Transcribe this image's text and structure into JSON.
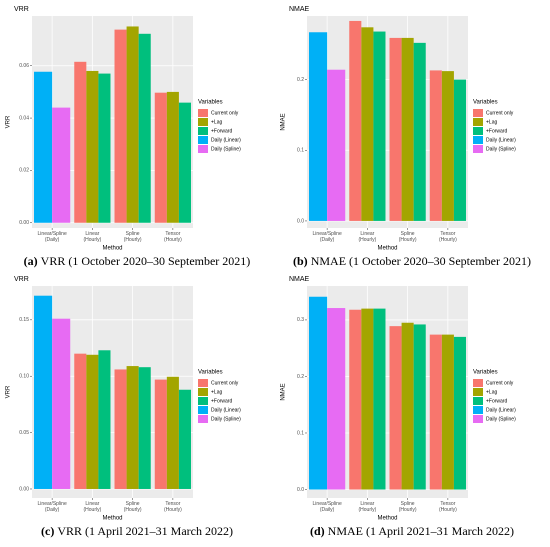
{
  "chart_data": [
    {
      "type": "bar",
      "title": "VRR",
      "y_label": "VRR",
      "x_label": "Method",
      "legend_title": "Variables",
      "caption_label": "(a)",
      "caption": "VRR (1 October 2020–30 September 2021)",
      "categories": [
        "Linear/Spline\n(Daily)",
        "Linear\n(Hourly)",
        "Spline\n(Hourly)",
        "Tensor\n(Hourly)"
      ],
      "series": [
        {
          "name": "Current only",
          "color": "#F8766D",
          "values": [
            null,
            0.0615,
            0.0738,
            0.0497
          ]
        },
        {
          "name": "+Lag",
          "color": "#A3A500",
          "values": [
            null,
            0.058,
            0.075,
            0.05
          ]
        },
        {
          "name": "+Forward",
          "color": "#00BF7D",
          "values": [
            null,
            0.057,
            0.0722,
            0.0459
          ]
        },
        {
          "name": "Daily (Linear)",
          "color": "#00B0F6",
          "values": [
            0.0577,
            null,
            null,
            null
          ]
        },
        {
          "name": "Daily (Spline)",
          "color": "#E76BF3",
          "values": [
            0.044,
            null,
            null,
            null
          ]
        }
      ],
      "ylim": [
        -0.002,
        0.079
      ],
      "yticks": [
        {
          "value": 0,
          "label": "0.00"
        },
        {
          "value": 0.02,
          "label": "0.02"
        },
        {
          "value": 0.04,
          "label": "0.04"
        },
        {
          "value": 0.06,
          "label": "0.06"
        }
      ],
      "grid": true
    },
    {
      "type": "bar",
      "title": "NMAE",
      "y_label": "NMAE",
      "x_label": "Method",
      "legend_title": "Variables",
      "caption_label": "(b)",
      "caption": "NMAE (1 October 2020–30 September 2021)",
      "categories": [
        "Linear/Spline\n(Daily)",
        "Linear\n(Hourly)",
        "Spline\n(Hourly)",
        "Tensor\n(Hourly)"
      ],
      "series": [
        {
          "name": "Current only",
          "color": "#F8766D",
          "values": [
            null,
            0.283,
            0.259,
            0.213
          ]
        },
        {
          "name": "+Lag",
          "color": "#A3A500",
          "values": [
            null,
            0.274,
            0.259,
            0.212
          ]
        },
        {
          "name": "+Forward",
          "color": "#00BF7D",
          "values": [
            null,
            0.268,
            0.252,
            0.2
          ]
        },
        {
          "name": "Daily (Linear)",
          "color": "#00B0F6",
          "values": [
            0.267,
            null,
            null,
            null
          ]
        },
        {
          "name": "Daily (Spline)",
          "color": "#E76BF3",
          "values": [
            0.214,
            null,
            null,
            null
          ]
        }
      ],
      "ylim": [
        -0.01,
        0.29
      ],
      "yticks": [
        {
          "value": 0,
          "label": "0.0"
        },
        {
          "value": 0.1,
          "label": "0.1"
        },
        {
          "value": 0.2,
          "label": "0.2"
        }
      ],
      "grid": true
    },
    {
      "type": "bar",
      "title": "VRR",
      "y_label": "VRR",
      "x_label": "Method",
      "legend_title": "Variables",
      "caption_label": "(c)",
      "caption": "VRR (1 April 2021–31 March 2022)",
      "categories": [
        "Linear/Spline\n(Daily)",
        "Linear\n(Hourly)",
        "Spline\n(Hourly)",
        "Tensor\n(Hourly)"
      ],
      "series": [
        {
          "name": "Current only",
          "color": "#F8766D",
          "values": [
            null,
            0.12,
            0.106,
            0.097
          ]
        },
        {
          "name": "+Lag",
          "color": "#A3A500",
          "values": [
            null,
            0.119,
            0.109,
            0.0995
          ]
        },
        {
          "name": "+Forward",
          "color": "#00BF7D",
          "values": [
            null,
            0.123,
            0.108,
            0.088
          ]
        },
        {
          "name": "Daily (Linear)",
          "color": "#00B0F6",
          "values": [
            0.1714,
            null,
            null,
            null
          ]
        },
        {
          "name": "Daily (Spline)",
          "color": "#E76BF3",
          "values": [
            0.151,
            null,
            null,
            null
          ]
        }
      ],
      "ylim": [
        -0.008,
        0.18
      ],
      "yticks": [
        {
          "value": 0,
          "label": "0.00"
        },
        {
          "value": 0.05,
          "label": "0.05"
        },
        {
          "value": 0.1,
          "label": "0.10"
        },
        {
          "value": 0.15,
          "label": "0.15"
        }
      ],
      "grid": true
    },
    {
      "type": "bar",
      "title": "NMAE",
      "y_label": "NMAE",
      "x_label": "Method",
      "legend_title": "Variables",
      "caption_label": "(d)",
      "caption": "NMAE (1 April 2021–31 March 2022)",
      "categories": [
        "Linear/Spline\n(Daily)",
        "Linear\n(Hourly)",
        "Spline\n(Hourly)",
        "Tensor\n(Hourly)"
      ],
      "series": [
        {
          "name": "Current only",
          "color": "#F8766D",
          "values": [
            null,
            0.318,
            0.289,
            0.274
          ]
        },
        {
          "name": "+Lag",
          "color": "#A3A500",
          "values": [
            null,
            0.32,
            0.295,
            0.274
          ]
        },
        {
          "name": "+Forward",
          "color": "#00BF7D",
          "values": [
            null,
            0.32,
            0.292,
            0.27
          ]
        },
        {
          "name": "Daily (Linear)",
          "color": "#00B0F6",
          "values": [
            0.341,
            null,
            null,
            null
          ]
        },
        {
          "name": "Daily (Spline)",
          "color": "#E76BF3",
          "values": [
            0.321,
            null,
            null,
            null
          ]
        }
      ],
      "ylim": [
        -0.015,
        0.36
      ],
      "yticks": [
        {
          "value": 0,
          "label": "0.0"
        },
        {
          "value": 0.1,
          "label": "0.1"
        },
        {
          "value": 0.2,
          "label": "0.2"
        },
        {
          "value": 0.3,
          "label": "0.3"
        }
      ],
      "grid": true
    }
  ]
}
